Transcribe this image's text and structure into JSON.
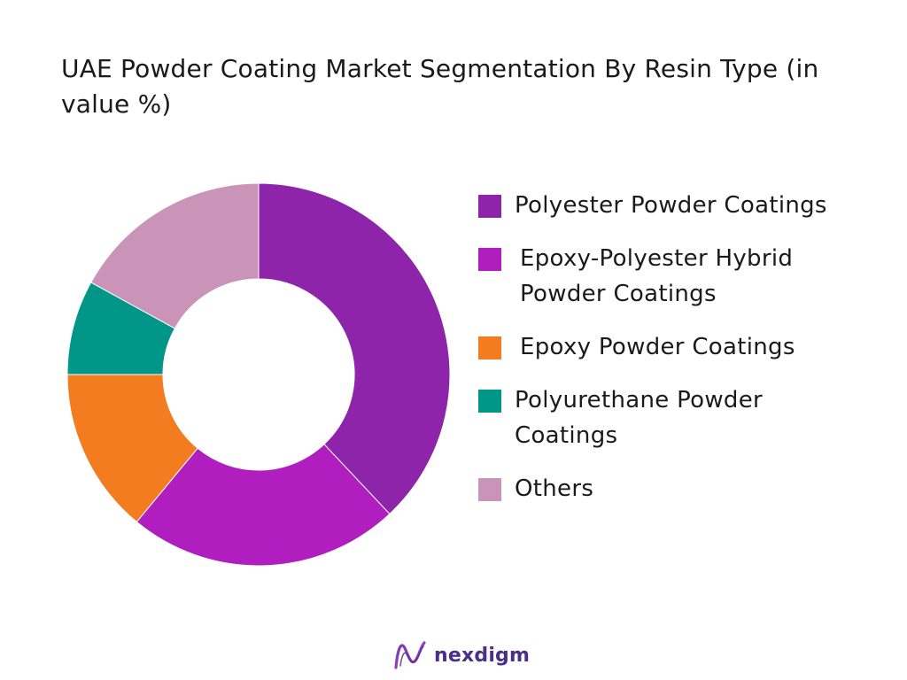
{
  "chart_data": {
    "type": "pie",
    "variant": "donut",
    "title": "UAE Powder Coating Market Segmentation By Resin Type (in value %)",
    "categories": [
      "Polyester Powder Coatings",
      "Epoxy-Polyester Hybrid Powder Coatings",
      "Epoxy Powder Coatings",
      "Polyurethane Powder Coatings",
      "Others"
    ],
    "values": [
      38,
      23,
      14,
      8,
      17
    ],
    "colors": [
      "#8e24aa",
      "#b01ebf",
      "#f47c20",
      "#009688",
      "#c994b8"
    ],
    "legend_position": "right"
  },
  "branding": {
    "logo_name": "nexdigm-logo",
    "logo_text": "nexdigm",
    "logo_color": "#4a2f8a"
  }
}
